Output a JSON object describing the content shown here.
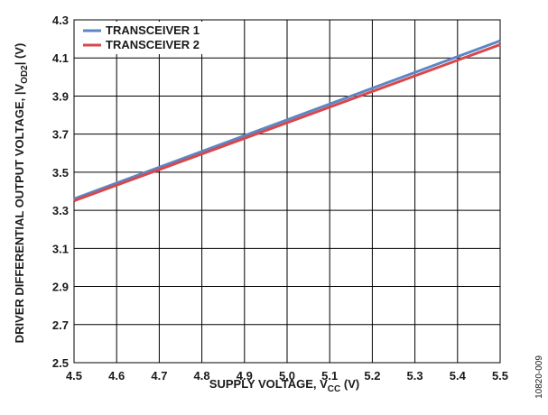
{
  "chart_data": {
    "type": "line",
    "x": [
      4.5,
      5.5
    ],
    "series": [
      {
        "name": "TRANSCEIVER 1",
        "color": "#5b87c4",
        "values": [
          3.36,
          4.19
        ]
      },
      {
        "name": "TRANSCEIVER 2",
        "color": "#d9474b",
        "values": [
          3.35,
          4.17
        ]
      }
    ],
    "xlim": [
      4.5,
      5.5
    ],
    "ylim": [
      2.5,
      4.3
    ],
    "xticks": [
      "4.5",
      "4.6",
      "4.7",
      "4.8",
      "4.9",
      "5.0",
      "5.1",
      "5.2",
      "5.3",
      "5.4",
      "5.5"
    ],
    "yticks": [
      "2.5",
      "2.7",
      "2.9",
      "3.1",
      "3.3",
      "3.5",
      "3.7",
      "3.9",
      "4.1",
      "4.3"
    ],
    "xlabel": {
      "main": "SUPPLY VOLTAGE, V",
      "sub": "CC",
      "suffix": " (V)"
    },
    "ylabel": {
      "main": "DRIVER DIFFERENTIAL OUTPUT VOLTAGE, |V",
      "sub": "OD2",
      "suffix": "| (V)"
    },
    "grid": true,
    "legend_position": "top-left"
  },
  "figure_id": "10820-009"
}
